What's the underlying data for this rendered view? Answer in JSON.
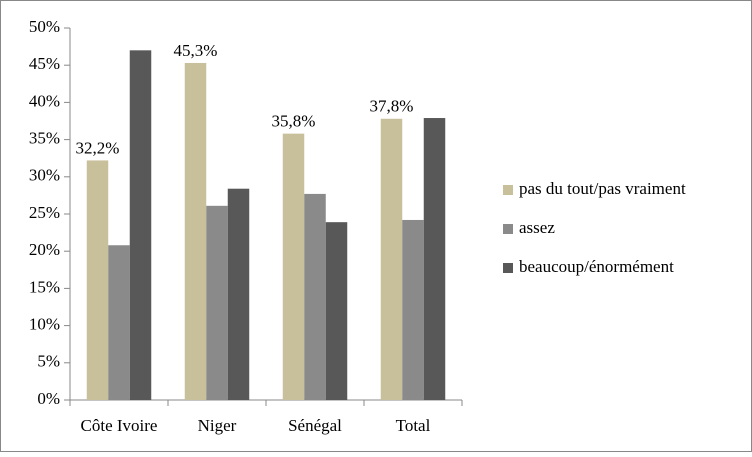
{
  "chart_data": {
    "type": "bar",
    "categories": [
      "Côte Ivoire",
      "Niger",
      "Sénégal",
      "Total"
    ],
    "series": [
      {
        "name": "pas du tout/pas vraiment",
        "color": "#c8bf9b",
        "values": [
          32.2,
          45.3,
          35.8,
          37.8
        ],
        "value_labels": [
          "32,2%",
          "45,3%",
          "35,8%",
          "37,8%"
        ]
      },
      {
        "name": "assez",
        "color": "#8a8a8a",
        "values": [
          20.8,
          26.1,
          27.7,
          24.2
        ]
      },
      {
        "name": "beaucoup/énormément",
        "color": "#585858",
        "values": [
          47.0,
          28.4,
          23.9,
          37.9
        ]
      }
    ],
    "ylim": [
      0,
      50
    ],
    "yticks": [
      {
        "value": 0,
        "label": "0%"
      },
      {
        "value": 5,
        "label": "5%"
      },
      {
        "value": 10,
        "label": "10%"
      },
      {
        "value": 15,
        "label": "15%"
      },
      {
        "value": 20,
        "label": "20%"
      },
      {
        "value": 25,
        "label": "25%"
      },
      {
        "value": 30,
        "label": "30%"
      },
      {
        "value": 35,
        "label": "35%"
      },
      {
        "value": 40,
        "label": "40%"
      },
      {
        "value": 45,
        "label": "45%"
      },
      {
        "value": 50,
        "label": "50%"
      }
    ],
    "grid": false,
    "legend": "right"
  }
}
